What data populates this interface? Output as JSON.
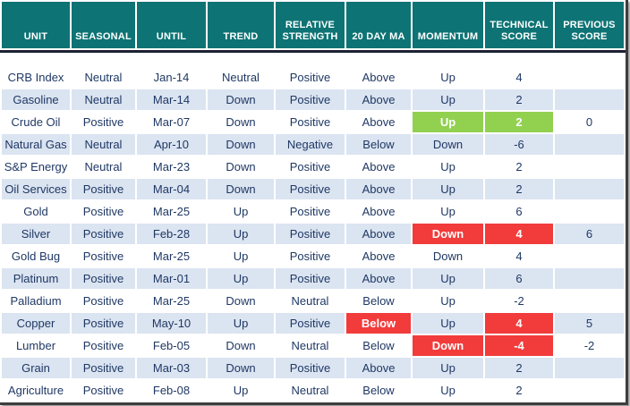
{
  "table": {
    "columns": [
      {
        "key": "unit",
        "label": "UNIT"
      },
      {
        "key": "seasonal",
        "label": "SEASONAL"
      },
      {
        "key": "until",
        "label": "UNTIL"
      },
      {
        "key": "trend",
        "label": "TREND"
      },
      {
        "key": "relative_strength",
        "label": "RELATIVE STRENGTH"
      },
      {
        "key": "ma20",
        "label": "20 DAY MA"
      },
      {
        "key": "momentum",
        "label": "MOMENTUM"
      },
      {
        "key": "technical_score",
        "label": "TECHNICAL SCORE"
      },
      {
        "key": "previous_score",
        "label": "PREVIOUS SCORE"
      }
    ],
    "rows": [
      {
        "unit": "CRB Index",
        "seasonal": "Neutral",
        "until": "Jan-14",
        "trend": "Neutral",
        "relative_strength": "Positive",
        "ma20": "Above",
        "momentum": "Up",
        "technical_score": "4",
        "previous_score": "",
        "highlights": {}
      },
      {
        "unit": "Gasoline",
        "seasonal": "Neutral",
        "until": "Mar-14",
        "trend": "Down",
        "relative_strength": "Positive",
        "ma20": "Above",
        "momentum": "Up",
        "technical_score": "2",
        "previous_score": "",
        "highlights": {}
      },
      {
        "unit": "Crude Oil",
        "seasonal": "Positive",
        "until": "Mar-07",
        "trend": "Down",
        "relative_strength": "Positive",
        "ma20": "Above",
        "momentum": "Up",
        "technical_score": "2",
        "previous_score": "0",
        "highlights": {
          "momentum": "green",
          "technical_score": "green"
        }
      },
      {
        "unit": "Natural Gas",
        "seasonal": "Neutral",
        "until": "Apr-10",
        "trend": "Down",
        "relative_strength": "Negative",
        "ma20": "Below",
        "momentum": "Down",
        "technical_score": "-6",
        "previous_score": "",
        "highlights": {}
      },
      {
        "unit": "S&P Energy",
        "seasonal": "Neutral",
        "until": "Mar-23",
        "trend": "Down",
        "relative_strength": "Positive",
        "ma20": "Above",
        "momentum": "Up",
        "technical_score": "2",
        "previous_score": "",
        "highlights": {}
      },
      {
        "unit": "Oil Services",
        "seasonal": "Positive",
        "until": "Mar-04",
        "trend": "Down",
        "relative_strength": "Positive",
        "ma20": "Above",
        "momentum": "Up",
        "technical_score": "2",
        "previous_score": "",
        "highlights": {}
      },
      {
        "unit": "Gold",
        "seasonal": "Positive",
        "until": "Mar-25",
        "trend": "Up",
        "relative_strength": "Positive",
        "ma20": "Above",
        "momentum": "Up",
        "technical_score": "6",
        "previous_score": "",
        "highlights": {}
      },
      {
        "unit": "Silver",
        "seasonal": "Positive",
        "until": "Feb-28",
        "trend": "Up",
        "relative_strength": "Positive",
        "ma20": "Above",
        "momentum": "Down",
        "technical_score": "4",
        "previous_score": "6",
        "highlights": {
          "momentum": "red",
          "technical_score": "red"
        }
      },
      {
        "unit": "Gold Bug",
        "seasonal": "Positive",
        "until": "Mar-25",
        "trend": "Up",
        "relative_strength": "Positive",
        "ma20": "Above",
        "momentum": "Down",
        "technical_score": "4",
        "previous_score": "",
        "highlights": {}
      },
      {
        "unit": "Platinum",
        "seasonal": "Positive",
        "until": "Mar-01",
        "trend": "Up",
        "relative_strength": "Positive",
        "ma20": "Above",
        "momentum": "Up",
        "technical_score": "6",
        "previous_score": "",
        "highlights": {}
      },
      {
        "unit": "Palladium",
        "seasonal": "Positive",
        "until": "Mar-25",
        "trend": "Down",
        "relative_strength": "Neutral",
        "ma20": "Below",
        "momentum": "Up",
        "technical_score": "-2",
        "previous_score": "",
        "highlights": {}
      },
      {
        "unit": "Copper",
        "seasonal": "Positive",
        "until": "May-10",
        "trend": "Up",
        "relative_strength": "Positive",
        "ma20": "Below",
        "momentum": "Up",
        "technical_score": "4",
        "previous_score": "5",
        "highlights": {
          "ma20": "red",
          "technical_score": "red"
        }
      },
      {
        "unit": "Lumber",
        "seasonal": "Positive",
        "until": "Feb-05",
        "trend": "Down",
        "relative_strength": "Neutral",
        "ma20": "Below",
        "momentum": "Down",
        "technical_score": "-4",
        "previous_score": "-2",
        "highlights": {
          "momentum": "red",
          "technical_score": "red"
        }
      },
      {
        "unit": "Grain",
        "seasonal": "Positive",
        "until": "Mar-03",
        "trend": "Down",
        "relative_strength": "Positive",
        "ma20": "Above",
        "momentum": "Up",
        "technical_score": "2",
        "previous_score": "",
        "highlights": {}
      },
      {
        "unit": "Agriculture",
        "seasonal": "Positive",
        "until": "Feb-08",
        "trend": "Up",
        "relative_strength": "Neutral",
        "ma20": "Below",
        "momentum": "Up",
        "technical_score": "2",
        "previous_score": "",
        "highlights": {}
      }
    ],
    "colors": {
      "header_bg": "#0E7374",
      "header_text": "#FFFFFF",
      "row_bg": "#FFFFFF",
      "row_alt_bg": "#DBE4F1",
      "cell_text": "#1F3864",
      "highlight_green": "#92D050",
      "highlight_red": "#F23B3B",
      "header_divider": "#1A2133"
    }
  }
}
